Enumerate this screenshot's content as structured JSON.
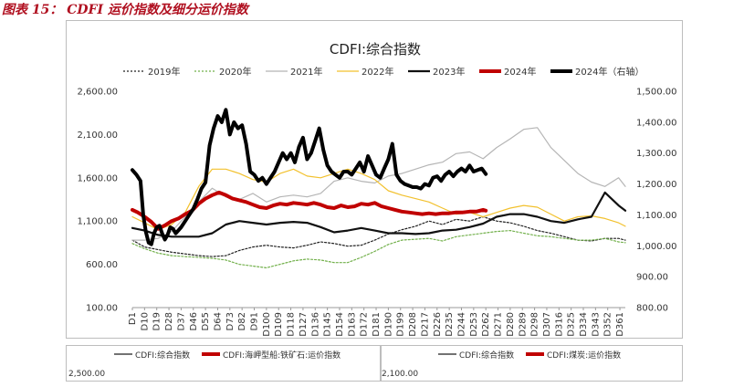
{
  "caption": "图表 15： CDFI 运价指数及细分运价指数",
  "main_chart": {
    "title": "CDFI:综合指数",
    "legend": [
      {
        "label": "2019年",
        "color": "#222222",
        "style": "dotted",
        "width": 1.2
      },
      {
        "label": "2020年",
        "color": "#72b04b",
        "style": "dotted",
        "width": 1.2
      },
      {
        "label": "2021年",
        "color": "#b5b5b5",
        "style": "solid",
        "width": 1.2
      },
      {
        "label": "2022年",
        "color": "#f2c12e",
        "style": "solid",
        "width": 1.2
      },
      {
        "label": "2023年",
        "color": "#111111",
        "style": "solid",
        "width": 2.2
      },
      {
        "label": "2024年",
        "color": "#c00000",
        "style": "solid",
        "width": 4
      },
      {
        "label": "2024年（右轴）",
        "color": "#000000",
        "style": "solid",
        "width": 4
      }
    ]
  },
  "bottom_left": {
    "legend": [
      {
        "label": "CDFI:综合指数",
        "color": "#444444",
        "width": 1.5
      },
      {
        "label": "CDFI:海岬型船:铁矿石:运价指数",
        "color": "#c00000",
        "width": 4
      }
    ],
    "first_tick": "2,500.00"
  },
  "bottom_right": {
    "legend": [
      {
        "label": "CDFI:综合指数",
        "color": "#444444",
        "width": 1.5
      },
      {
        "label": "CDFI:煤炭:运价指数",
        "color": "#c00000",
        "width": 4
      }
    ],
    "first_tick": "2,100.00"
  },
  "chart_data": {
    "type": "line",
    "title": "CDFI:综合指数",
    "x_label_note": "day of year, D1–D365",
    "x_ticks": [
      "D1",
      "D10",
      "D19",
      "D28",
      "D37",
      "D46",
      "D55",
      "D64",
      "D73",
      "D82",
      "D91",
      "D100",
      "D109",
      "D118",
      "D127",
      "D136",
      "D145",
      "D154",
      "D163",
      "D172",
      "D181",
      "D190",
      "D199",
      "D208",
      "D217",
      "D226",
      "D235",
      "D244",
      "D253",
      "D262",
      "D271",
      "D280",
      "D289",
      "D298",
      "D307",
      "D316",
      "D325",
      "D334",
      "D343",
      "D352",
      "D361"
    ],
    "y_left": {
      "min": 100,
      "max": 2600,
      "ticks": [
        "100.00",
        "600.00",
        "1,100.00",
        "1,600.00",
        "2,100.00",
        "2,600.00"
      ]
    },
    "y_right": {
      "min": 800,
      "max": 1500,
      "ticks": [
        "800.00",
        "900.00",
        "1,000.00",
        "1,100.00",
        "1,200.00",
        "1,300.00",
        "1,400.00",
        "1,500.00"
      ]
    },
    "series": [
      {
        "name": "2019年",
        "axis": "left",
        "x": [
          1,
          10,
          20,
          30,
          40,
          50,
          60,
          70,
          80,
          90,
          100,
          110,
          120,
          130,
          140,
          150,
          160,
          170,
          180,
          190,
          200,
          210,
          220,
          230,
          240,
          250,
          260,
          270,
          280,
          290,
          300,
          310,
          320,
          330,
          340,
          350,
          360,
          365
        ],
        "y": [
          880,
          800,
          770,
          740,
          720,
          700,
          690,
          700,
          760,
          800,
          820,
          800,
          790,
          820,
          860,
          840,
          810,
          820,
          880,
          950,
          1000,
          1040,
          1100,
          1060,
          1120,
          1100,
          1150,
          1100,
          1080,
          1040,
          990,
          960,
          920,
          880,
          870,
          900,
          900,
          880
        ]
      },
      {
        "name": "2020年",
        "axis": "left",
        "x": [
          1,
          10,
          20,
          30,
          40,
          50,
          60,
          70,
          80,
          90,
          100,
          110,
          120,
          130,
          140,
          150,
          160,
          170,
          180,
          190,
          200,
          210,
          220,
          230,
          240,
          250,
          260,
          270,
          280,
          290,
          300,
          310,
          320,
          330,
          340,
          350,
          360,
          365
        ],
        "y": [
          840,
          780,
          730,
          700,
          690,
          680,
          670,
          650,
          600,
          580,
          560,
          600,
          640,
          660,
          650,
          620,
          620,
          680,
          750,
          830,
          880,
          890,
          900,
          870,
          920,
          940,
          960,
          980,
          990,
          960,
          930,
          920,
          900,
          880,
          880,
          900,
          860,
          850
        ]
      },
      {
        "name": "2021年",
        "axis": "left",
        "x": [
          1,
          10,
          20,
          30,
          40,
          50,
          60,
          70,
          80,
          90,
          100,
          110,
          120,
          130,
          140,
          150,
          160,
          170,
          180,
          190,
          200,
          210,
          220,
          230,
          240,
          250,
          260,
          270,
          280,
          290,
          300,
          310,
          320,
          330,
          340,
          350,
          360,
          365
        ],
        "y": [
          880,
          880,
          900,
          980,
          1150,
          1320,
          1480,
          1380,
          1350,
          1420,
          1320,
          1380,
          1400,
          1380,
          1420,
          1560,
          1600,
          1560,
          1540,
          1620,
          1650,
          1700,
          1750,
          1780,
          1880,
          1900,
          1820,
          1950,
          2050,
          2160,
          2180,
          1950,
          1800,
          1650,
          1550,
          1500,
          1600,
          1500
        ]
      },
      {
        "name": "2022年",
        "axis": "left",
        "x": [
          1,
          10,
          20,
          30,
          40,
          50,
          60,
          70,
          80,
          90,
          100,
          110,
          120,
          130,
          140,
          150,
          160,
          170,
          180,
          190,
          200,
          210,
          220,
          230,
          240,
          250,
          260,
          270,
          280,
          290,
          300,
          310,
          320,
          330,
          340,
          350,
          360,
          365
        ],
        "y": [
          1150,
          1080,
          1000,
          1060,
          1200,
          1500,
          1700,
          1700,
          1650,
          1580,
          1550,
          1650,
          1700,
          1620,
          1600,
          1650,
          1700,
          1650,
          1580,
          1450,
          1400,
          1360,
          1320,
          1250,
          1180,
          1200,
          1150,
          1200,
          1250,
          1280,
          1260,
          1180,
          1100,
          1150,
          1160,
          1130,
          1080,
          1040
        ]
      },
      {
        "name": "2023年",
        "axis": "left",
        "x": [
          1,
          10,
          20,
          30,
          40,
          50,
          60,
          70,
          80,
          90,
          100,
          110,
          120,
          130,
          140,
          150,
          160,
          170,
          180,
          190,
          200,
          210,
          220,
          230,
          240,
          250,
          260,
          270,
          280,
          290,
          300,
          310,
          320,
          330,
          340,
          350,
          360,
          365
        ],
        "y": [
          1020,
          990,
          940,
          920,
          920,
          920,
          960,
          1060,
          1100,
          1080,
          1060,
          1080,
          1090,
          1080,
          1030,
          970,
          990,
          1020,
          990,
          960,
          960,
          950,
          960,
          990,
          1000,
          1030,
          1070,
          1150,
          1180,
          1180,
          1150,
          1100,
          1080,
          1120,
          1150,
          1430,
          1280,
          1220
        ]
      },
      {
        "name": "2024年",
        "axis": "left",
        "x": [
          1,
          5,
          10,
          15,
          20,
          25,
          30,
          35,
          40,
          45,
          50,
          55,
          60,
          65,
          70,
          75,
          80,
          85,
          90,
          95,
          100,
          105,
          110,
          115,
          120,
          125,
          130,
          135,
          140,
          145,
          150,
          155,
          160,
          165,
          170,
          175,
          180,
          185,
          190,
          195,
          200,
          205,
          210,
          215,
          220,
          225,
          230,
          235,
          240,
          245,
          250,
          255,
          260,
          262
        ],
        "y": [
          1230,
          1200,
          1150,
          1090,
          1010,
          1050,
          1100,
          1130,
          1180,
          1220,
          1300,
          1360,
          1400,
          1430,
          1400,
          1360,
          1340,
          1320,
          1290,
          1260,
          1250,
          1280,
          1300,
          1290,
          1310,
          1300,
          1290,
          1310,
          1290,
          1260,
          1250,
          1280,
          1260,
          1270,
          1300,
          1290,
          1310,
          1270,
          1250,
          1230,
          1210,
          1200,
          1190,
          1180,
          1190,
          1180,
          1190,
          1190,
          1200,
          1200,
          1210,
          1210,
          1230,
          1220
        ]
      },
      {
        "name": "2024年（右轴）",
        "axis": "right",
        "x": [
          1,
          4,
          7,
          9,
          11,
          13,
          15,
          17,
          19,
          21,
          23,
          25,
          27,
          29,
          31,
          33,
          35,
          37,
          40,
          43,
          46,
          49,
          52,
          55,
          58,
          61,
          64,
          67,
          70,
          73,
          76,
          79,
          82,
          85,
          88,
          91,
          94,
          97,
          100,
          103,
          106,
          109,
          112,
          115,
          118,
          121,
          124,
          127,
          130,
          133,
          136,
          139,
          142,
          145,
          148,
          151,
          154,
          157,
          160,
          163,
          166,
          169,
          172,
          175,
          178,
          181,
          184,
          187,
          190,
          193,
          196,
          199,
          202,
          205,
          208,
          211,
          214,
          217,
          220,
          223,
          226,
          229,
          232,
          235,
          238,
          241,
          244,
          247,
          250,
          253,
          256,
          259,
          262
        ],
        "y": [
          1245,
          1230,
          1210,
          1100,
          1045,
          1010,
          1005,
          1040,
          1060,
          1065,
          1040,
          1020,
          1035,
          1060,
          1055,
          1040,
          1050,
          1060,
          1080,
          1100,
          1120,
          1150,
          1185,
          1205,
          1325,
          1380,
          1420,
          1400,
          1440,
          1360,
          1400,
          1380,
          1390,
          1330,
          1240,
          1230,
          1210,
          1220,
          1200,
          1220,
          1240,
          1270,
          1300,
          1280,
          1300,
          1270,
          1320,
          1350,
          1280,
          1300,
          1340,
          1380,
          1310,
          1260,
          1240,
          1230,
          1220,
          1240,
          1240,
          1230,
          1250,
          1270,
          1240,
          1290,
          1260,
          1230,
          1220,
          1250,
          1280,
          1330,
          1230,
          1210,
          1200,
          1195,
          1190,
          1190,
          1185,
          1200,
          1195,
          1220,
          1225,
          1210,
          1230,
          1240,
          1225,
          1240,
          1250,
          1240,
          1260,
          1240,
          1245,
          1250,
          1232
        ]
      }
    ]
  }
}
